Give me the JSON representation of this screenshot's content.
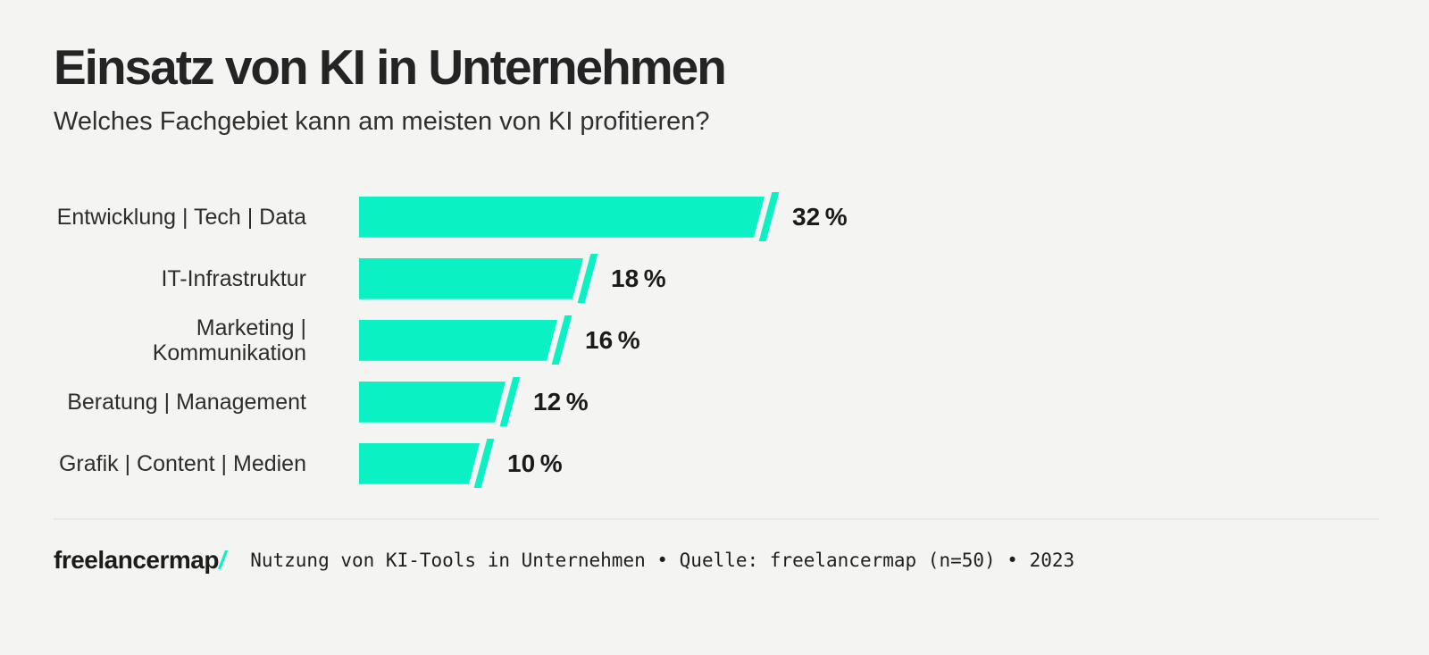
{
  "colors": {
    "background": "#f4f4f2",
    "bar": "#0af2c4",
    "title_text": "#242424",
    "label_text": "#2d2d2d",
    "percent_text": "#1b1b1b",
    "divider": "#e7e7e5"
  },
  "header": {
    "title": "Einsatz von KI in Unternehmen",
    "subtitle": "Welches Fachgebiet kann am meisten von KI profitieren?"
  },
  "chart_data": {
    "type": "bar",
    "orientation": "horizontal",
    "title": "Einsatz von KI in Unternehmen",
    "subtitle": "Welches Fachgebiet kann am meisten von KI profitieren?",
    "unit": "%",
    "xlim": [
      0,
      32
    ],
    "grid": false,
    "legend": false,
    "categories": [
      "Entwicklung | Tech | Data",
      "IT-Infrastruktur",
      "Marketing | Kommunikation",
      "Beratung | Management",
      "Grafik | Content | Medien"
    ],
    "values": [
      32,
      18,
      16,
      12,
      10
    ],
    "rows": [
      {
        "label": "Entwicklung | Tech | Data",
        "value": 32,
        "value_label": "32 %"
      },
      {
        "label": "IT-Infrastruktur",
        "value": 18,
        "value_label": "18 %"
      },
      {
        "label": "Marketing |\nKommunikation",
        "value": 16,
        "value_label": "16 %"
      },
      {
        "label": "Beratung | Management",
        "value": 12,
        "value_label": "12 %"
      },
      {
        "label": "Grafik | Content | Medien",
        "value": 10,
        "value_label": "10 %"
      }
    ]
  },
  "footer": {
    "logo_text": "freelancermap",
    "logo_slash": "/",
    "caption": "Nutzung von KI-Tools in Unternehmen • Quelle: freelancermap (n=50) • 2023"
  }
}
